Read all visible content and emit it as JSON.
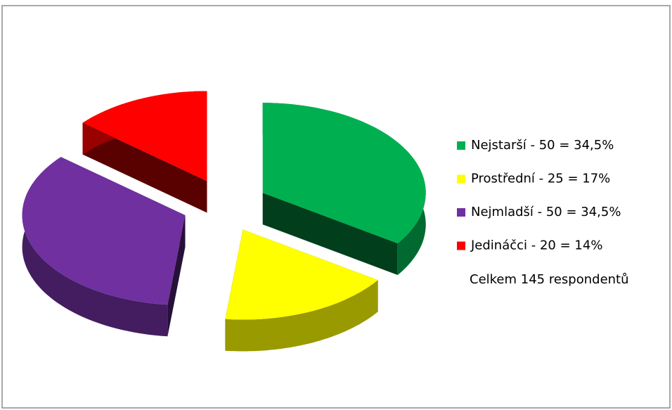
{
  "chart_data": {
    "type": "pie",
    "categories": [
      "Nejstarší - 50 = 34,5%",
      "Prostřední - 25 = 17%",
      "Nejmladší - 50 = 34,5%",
      "Jedináčci - 20 = 14%"
    ],
    "values": [
      50,
      25,
      50,
      20
    ],
    "colors": [
      "#00b050",
      "#ffff00",
      "#7030a0",
      "#ff0000"
    ],
    "annotation": "Celkem 145 respondentů",
    "legend": "right"
  }
}
